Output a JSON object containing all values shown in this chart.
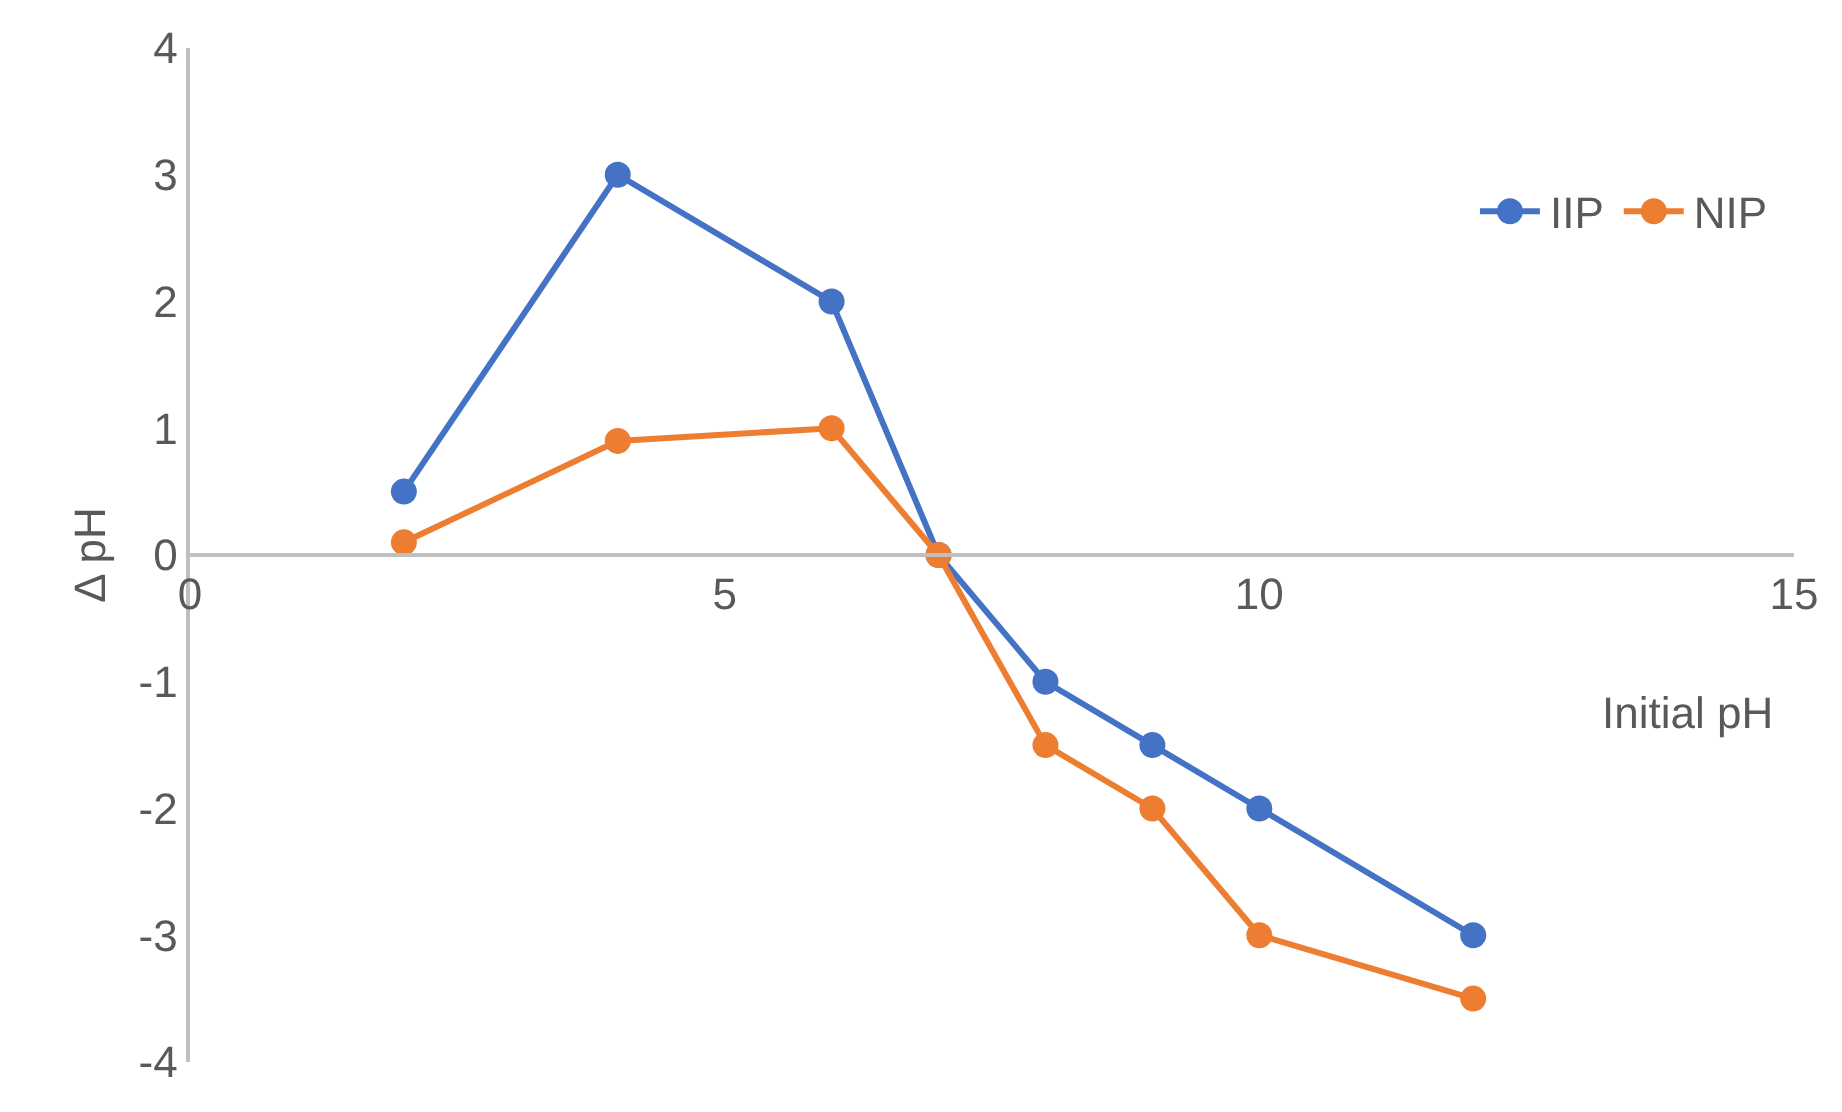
{
  "chart_data": {
    "type": "line",
    "xlabel": "Initial pH",
    "ylabel": "Δ pH",
    "xlim": [
      0,
      15
    ],
    "xticks": [
      0,
      5,
      10,
      15
    ],
    "ylim": [
      -4,
      4
    ],
    "yticks": [
      -4,
      -3,
      -2,
      -1,
      0,
      1,
      2,
      3,
      4
    ],
    "legend": "top right",
    "marker": "circle",
    "line_style": "solid",
    "series": [
      {
        "name": "IIP",
        "color": "#4472c4",
        "x": [
          2,
          4,
          6,
          7,
          8,
          9,
          10,
          12
        ],
        "values": [
          0.5,
          3,
          2,
          0,
          -1,
          -1.5,
          -2,
          -3
        ]
      },
      {
        "name": "NIP",
        "color": "#ed7d31",
        "x": [
          2,
          4,
          6,
          7,
          8,
          9,
          10,
          12
        ],
        "values": [
          0.1,
          0.9,
          1,
          0,
          -1.5,
          -2,
          -3,
          -3.5
        ]
      }
    ]
  }
}
